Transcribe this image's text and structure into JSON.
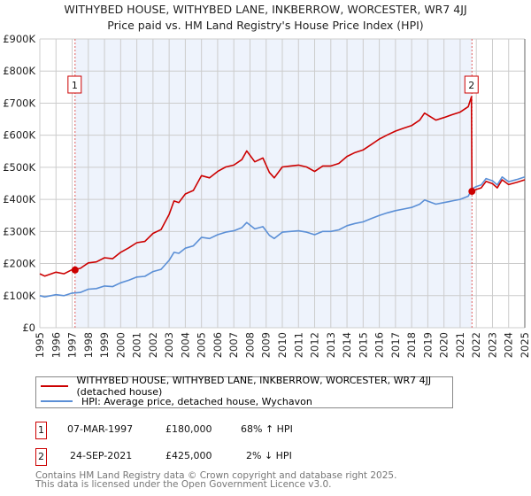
{
  "chart_data": {
    "type": "line",
    "title": "WITHYBED HOUSE, WITHYBED LANE, INKBERROW, WORCESTER, WR7 4JJ",
    "subtitle": "Price paid vs. HM Land Registry's House Price Index (HPI)",
    "xlim": [
      1995,
      2025
    ],
    "ylim": [
      0,
      900000
    ],
    "x_ticks": [
      "1995",
      "1996",
      "1997",
      "1998",
      "1999",
      "2000",
      "2001",
      "2002",
      "2003",
      "2004",
      "2005",
      "2006",
      "2007",
      "2008",
      "2009",
      "2010",
      "2011",
      "2012",
      "2013",
      "2014",
      "2015",
      "2016",
      "2017",
      "2018",
      "2019",
      "2020",
      "2021",
      "2022",
      "2023",
      "2024",
      "2025"
    ],
    "y_ticks": [
      {
        "v": 0,
        "label": "£0"
      },
      {
        "v": 100000,
        "label": "£100K"
      },
      {
        "v": 200000,
        "label": "£200K"
      },
      {
        "v": 300000,
        "label": "£300K"
      },
      {
        "v": 400000,
        "label": "£400K"
      },
      {
        "v": 500000,
        "label": "£500K"
      },
      {
        "v": 600000,
        "label": "£600K"
      },
      {
        "v": 700000,
        "label": "£700K"
      },
      {
        "v": 800000,
        "label": "£800K"
      },
      {
        "v": 900000,
        "label": "£900K"
      }
    ],
    "grid": true,
    "colors": {
      "property": "#cc0000",
      "hpi": "#5b8fd6",
      "shade": "#eef3fc"
    },
    "series": [
      {
        "name": "WITHYBED HOUSE, WITHYBED LANE, INKBERROW, WORCESTER, WR7 4JJ (detached house)",
        "x": [
          1995,
          1995.3,
          1996,
          1996.5,
          1997,
          1997.5,
          1998,
          1998.5,
          1999,
          1999.5,
          2000,
          2000.5,
          2001,
          2001.5,
          2002,
          2002.5,
          2003,
          2003.3,
          2003.6,
          2004,
          2004.5,
          2005,
          2005.5,
          2006,
          2006.5,
          2007,
          2007.5,
          2007.8,
          2008.3,
          2008.8,
          2009.2,
          2009.5,
          2010,
          2010.5,
          2011,
          2011.5,
          2012,
          2012.5,
          2013,
          2013.5,
          2014,
          2014.5,
          2015,
          2015.5,
          2016,
          2016.5,
          2017,
          2017.5,
          2018,
          2018.5,
          2018.8,
          2019.5,
          2020,
          2020.5,
          2021,
          2021.5,
          2021.7,
          2021.73,
          2022,
          2022.3,
          2022.6,
          2023,
          2023.3,
          2023.6,
          2024,
          2024.5,
          2025
        ],
        "values": [
          168,
          161,
          173,
          168,
          181,
          185,
          202,
          205,
          218,
          215,
          235,
          249,
          265,
          269,
          294,
          306,
          353,
          395,
          390,
          417,
          428,
          474,
          467,
          487,
          501,
          507,
          524,
          551,
          517,
          529,
          484,
          467,
          501,
          504,
          507,
          501,
          487,
          504,
          504,
          512,
          534,
          546,
          554,
          571,
          588,
          601,
          613,
          622,
          630,
          647,
          669,
          647,
          655,
          664,
          672,
          689,
          720,
          425,
          431,
          436,
          456,
          449,
          436,
          461,
          446,
          453,
          461
        ]
      },
      {
        "name": "HPI: Average price, detached house, Wychavon",
        "x": [
          1995,
          1995.3,
          1996,
          1996.5,
          1997,
          1997.5,
          1998,
          1998.5,
          1999,
          1999.5,
          2000,
          2000.5,
          2001,
          2001.5,
          2002,
          2002.5,
          2003,
          2003.3,
          2003.6,
          2004,
          2004.5,
          2005,
          2005.5,
          2006,
          2006.5,
          2007,
          2007.5,
          2007.8,
          2008.3,
          2008.8,
          2009.2,
          2009.5,
          2010,
          2010.5,
          2011,
          2011.5,
          2012,
          2012.5,
          2013,
          2013.5,
          2014,
          2014.5,
          2015,
          2015.5,
          2016,
          2016.5,
          2017,
          2017.5,
          2018,
          2018.5,
          2018.8,
          2019.5,
          2020,
          2020.5,
          2021,
          2021.5,
          2021.73,
          2022,
          2022.3,
          2022.6,
          2023,
          2023.3,
          2023.6,
          2024,
          2024.5,
          2025
        ],
        "values": [
          100,
          96,
          103,
          100,
          108,
          110,
          120,
          122,
          130,
          128,
          140,
          148,
          158,
          160,
          175,
          182,
          210,
          235,
          232,
          248,
          255,
          282,
          278,
          290,
          298,
          302,
          312,
          328,
          308,
          315,
          288,
          278,
          298,
          300,
          302,
          298,
          290,
          300,
          300,
          305,
          318,
          325,
          330,
          340,
          350,
          358,
          365,
          370,
          375,
          385,
          398,
          385,
          390,
          395,
          400,
          410,
          433,
          440,
          445,
          465,
          458,
          445,
          470,
          455,
          462,
          470
        ]
      }
    ],
    "value_unit": "thousand GBP",
    "sales": [
      {
        "id": "1",
        "x": 1997.18,
        "value": 180
      },
      {
        "id": "2",
        "x": 2021.73,
        "value": 425
      }
    ]
  },
  "legend": {
    "property_label": "WITHYBED HOUSE, WITHYBED LANE, INKBERROW, WORCESTER, WR7 4JJ (detached house)",
    "hpi_label": "HPI: Average price, detached house, Wychavon"
  },
  "transactions": [
    {
      "id": "1",
      "date": "07-MAR-1997",
      "price": "£180,000",
      "hpi": "68% ↑ HPI"
    },
    {
      "id": "2",
      "date": "24-SEP-2021",
      "price": "£425,000",
      "hpi": "2% ↓ HPI"
    }
  ],
  "footer": {
    "line1": "Contains HM Land Registry data © Crown copyright and database right 2025.",
    "line2": "This data is licensed under the Open Government Licence v3.0."
  }
}
